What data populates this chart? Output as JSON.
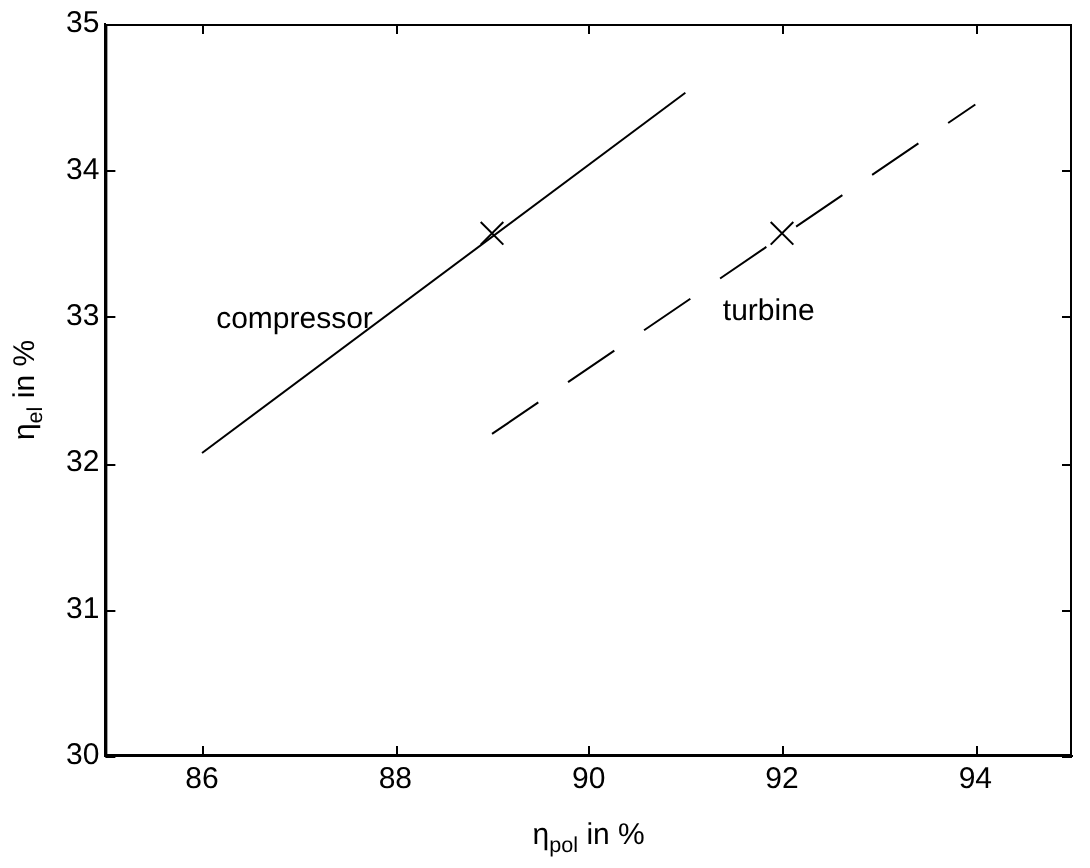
{
  "chart_data": {
    "type": "line",
    "xlabel": "η$_{pol}$ in %",
    "ylabel": "η$_{el}$ in %",
    "xlim": [
      85,
      95
    ],
    "xticks": [
      86,
      88,
      90,
      92,
      94
    ],
    "ylim": [
      30,
      35
    ],
    "yticks": [
      30,
      31,
      32,
      33,
      34,
      35
    ],
    "grid": false,
    "legend": false,
    "series": [
      {
        "type": "line",
        "name": "compressor",
        "color": "#000000",
        "line_style": "solid",
        "marker": "none",
        "x": [
          86,
          91
        ],
        "values": [
          32.07,
          34.53
        ]
      },
      {
        "type": "line",
        "name": "turbine",
        "color": "#000000",
        "line_style": "dashed",
        "marker": "none",
        "x": [
          89,
          94
        ],
        "values": [
          32.2,
          34.45
        ]
      },
      {
        "type": "scatter",
        "color": "#000000",
        "marker": "cross",
        "x": [
          89,
          92
        ],
        "values": [
          33.57,
          33.57
        ]
      }
    ]
  }
}
